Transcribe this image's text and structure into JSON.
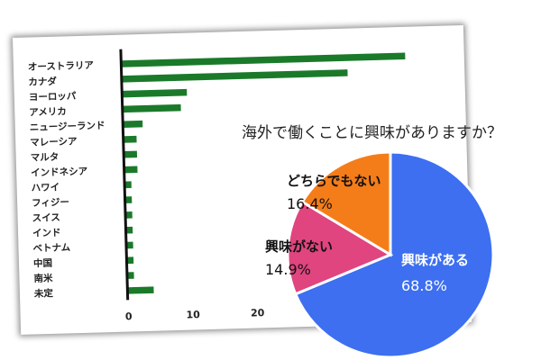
{
  "chart_data": [
    {
      "type": "bar",
      "orientation": "horizontal",
      "categories": [
        "オーストラリア",
        "カナダ",
        "ヨーロッパ",
        "アメリカ",
        "ニュージーランド",
        "マレーシア",
        "マルタ",
        "インドネシア",
        "ハワイ",
        "フィジー",
        "スイス",
        "インド",
        "ベトナム",
        "中国",
        "南米",
        "未定"
      ],
      "values": [
        44,
        35,
        10,
        9,
        3,
        2,
        2,
        2,
        1,
        1,
        1,
        1,
        1,
        1,
        1,
        4
      ],
      "xticks": [
        "0",
        "10",
        "20"
      ],
      "xlim": [
        0,
        50
      ],
      "color": "#1a7a2a",
      "grid": false
    },
    {
      "type": "pie",
      "title": "海外で働くことに興味がありますか？",
      "slices": [
        {
          "label": "興味がある",
          "value": 68.8,
          "value_label": "68.8%",
          "color": "#3d6ff0"
        },
        {
          "label": "興味がない",
          "value": 14.9,
          "value_label": "14.9%",
          "color": "#e0457f"
        },
        {
          "label": "どちらでもない",
          "value": 16.4,
          "value_label": "16.4%",
          "color": "#f47d1a"
        }
      ]
    }
  ]
}
